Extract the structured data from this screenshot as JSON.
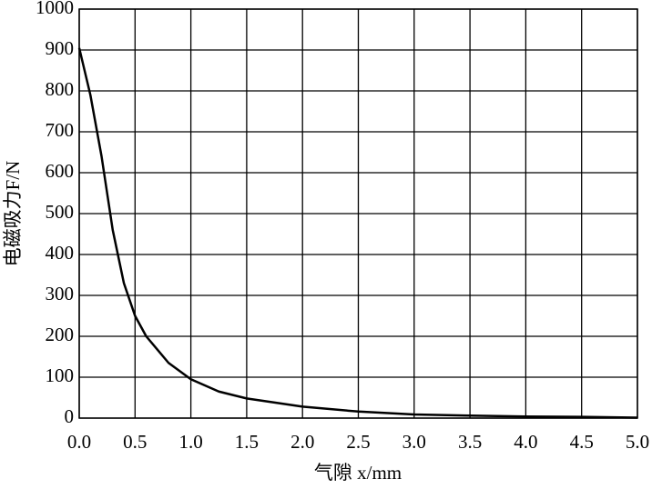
{
  "chart_data": {
    "type": "line",
    "xlabel": "气隙 x/mm",
    "ylabel": "电磁吸力F/N",
    "x": [
      0,
      0.1,
      0.2,
      0.3,
      0.4,
      0.5,
      0.6,
      0.8,
      1.0,
      1.25,
      1.5,
      2.0,
      2.5,
      3.0,
      3.5,
      4.0,
      4.5,
      5.0
    ],
    "series": [
      {
        "color": "#000000",
        "values": [
          905,
          790,
          640,
          460,
          330,
          250,
          200,
          135,
          95,
          65,
          48,
          28,
          16,
          9,
          6,
          4,
          3,
          1
        ]
      }
    ],
    "xlim": [
      0,
      5
    ],
    "ylim": [
      0,
      1000
    ],
    "xticks": [
      {
        "value": 0,
        "label": "0.0"
      },
      0.5,
      {
        "value": 1,
        "label": "1.0"
      },
      1.5,
      {
        "value": 2,
        "label": "2.0"
      },
      2.5,
      {
        "value": 3,
        "label": "3.0"
      },
      3.5,
      {
        "value": 4,
        "label": "4.0"
      },
      4.5,
      {
        "value": 5,
        "label": "5.0"
      }
    ],
    "yticks": [
      0,
      100,
      200,
      300,
      400,
      500,
      600,
      700,
      800,
      900,
      1000
    ],
    "grid": true
  }
}
